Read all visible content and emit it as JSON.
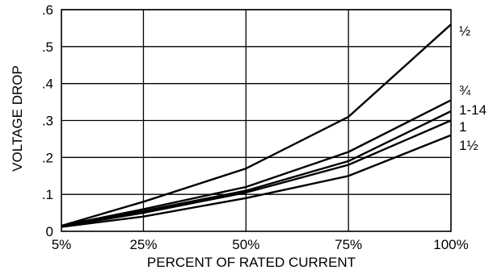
{
  "chart_data": {
    "type": "line",
    "xlabel": "PERCENT OF RATED CURRENT",
    "ylabel": "VOLTAGE DROP",
    "categories": [
      "5%",
      "25%",
      "50%",
      "75%",
      "100%"
    ],
    "x": [
      5,
      25,
      50,
      75,
      100
    ],
    "y_ticks": [
      "0",
      ".1",
      ".2",
      ".3",
      ".4",
      ".5",
      ".6"
    ],
    "y_tick_values": [
      0,
      0.1,
      0.2,
      0.3,
      0.4,
      0.5,
      0.6
    ],
    "ylim": [
      0,
      0.6
    ],
    "grid": true,
    "legend": "end-of-line labels on the right",
    "series": [
      {
        "name": "½",
        "values": [
          0.015,
          0.08,
          0.17,
          0.31,
          0.56
        ]
      },
      {
        "name": "¾",
        "values": [
          0.015,
          0.06,
          0.12,
          0.215,
          0.355
        ]
      },
      {
        "name": "1-14",
        "values": [
          0.015,
          0.055,
          0.11,
          0.19,
          0.325
        ]
      },
      {
        "name": "1",
        "values": [
          0.013,
          0.05,
          0.105,
          0.18,
          0.3
        ]
      },
      {
        "name": "1½",
        "values": [
          0.012,
          0.04,
          0.09,
          0.15,
          0.26
        ]
      }
    ],
    "line_color": "#000000",
    "grid_color": "#000000"
  }
}
